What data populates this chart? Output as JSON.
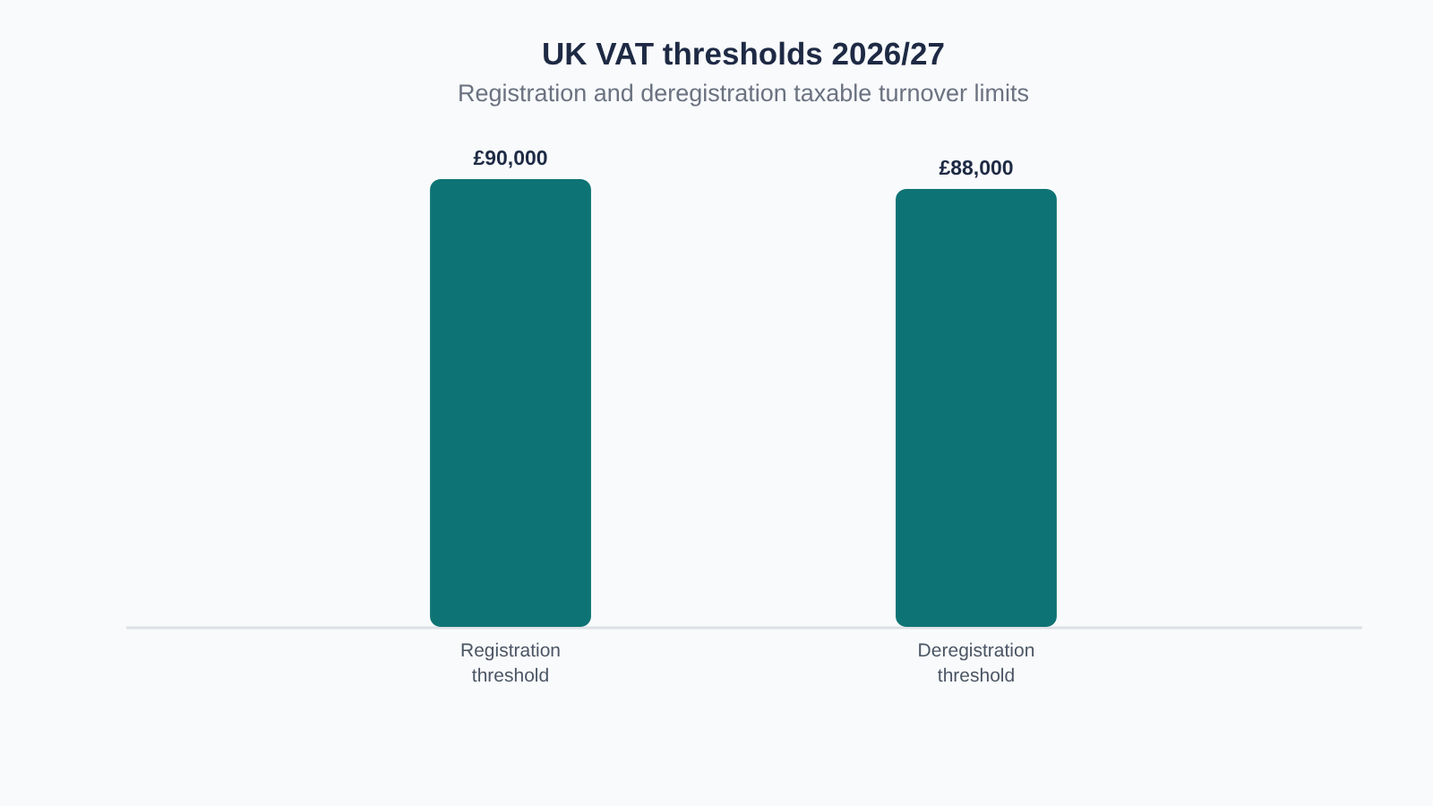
{
  "chart_data": {
    "type": "bar",
    "title": "UK VAT thresholds 2026/27",
    "subtitle": "Registration and deregistration taxable turnover limits",
    "categories": [
      "Registration threshold",
      "Deregistration threshold"
    ],
    "values": [
      90000,
      88000
    ],
    "color": "#0e7374",
    "value_labels": [
      "£90,000",
      "£88,000"
    ],
    "ylim": [
      0,
      90000
    ],
    "tick_labels": "x"
  }
}
